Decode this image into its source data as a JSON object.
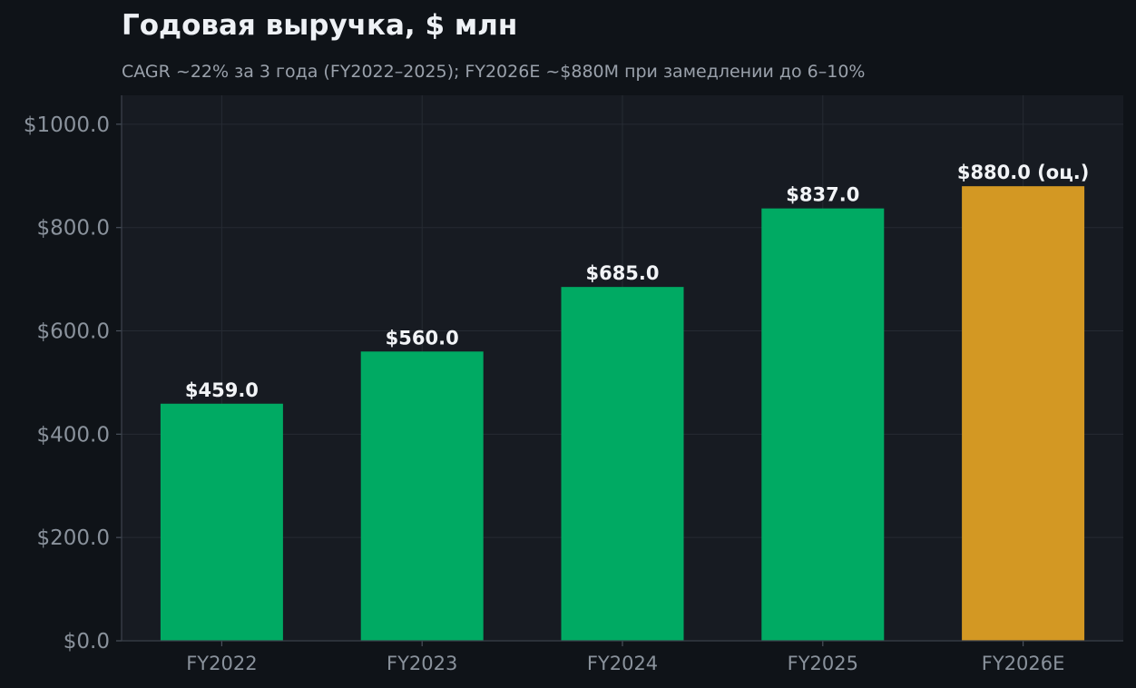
{
  "colors": {
    "page_bg": "#0f1318",
    "plot_bg": "#171b22",
    "grid": "#262b33",
    "actual_bar": "#00aa63",
    "estimate_bar": "#d39823",
    "text": "#eef1f5",
    "muted": "#9aa1ab"
  },
  "chart_data": {
    "type": "bar",
    "title": "Годовая выручка, $ млн",
    "subtitle": "CAGR ~22% за 3 года (FY2022–2025); FY2026E ~$880M при замедлении до 6–10%",
    "categories": [
      "FY2022",
      "FY2023",
      "FY2024",
      "FY2025",
      "FY2026E"
    ],
    "values": [
      459.0,
      560.0,
      685.0,
      837.0,
      880.0
    ],
    "estimate": [
      false,
      false,
      false,
      false,
      true
    ],
    "data_labels": [
      "$459.0",
      "$560.0",
      "$685.0",
      "$837.0",
      "$880.0 (оц.)"
    ],
    "yticks": [
      0,
      200,
      400,
      600,
      800,
      1000
    ],
    "ytick_labels": [
      "$0.0",
      "$200.0",
      "$400.0",
      "$600.0",
      "$800.0",
      "$1000.0"
    ],
    "ylim": [
      0,
      1056
    ],
    "grid": true,
    "xlabel": "",
    "ylabel": ""
  }
}
